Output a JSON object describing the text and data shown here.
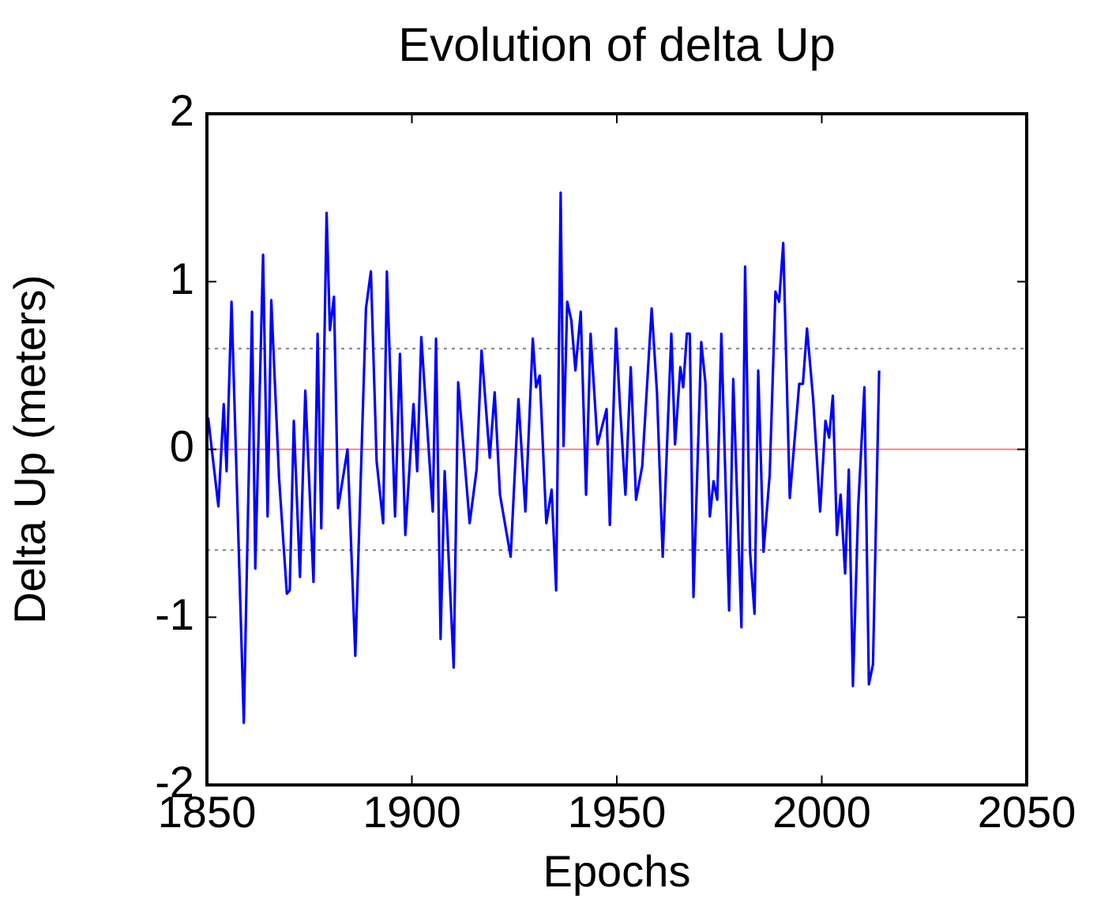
{
  "chart_data": {
    "type": "line",
    "title": "Evolution of delta Up",
    "xlabel": "Epochs",
    "ylabel": "Delta Up (meters)",
    "xlim": [
      1850,
      2050
    ],
    "xticks": [
      1850,
      1900,
      1950,
      2000,
      2050
    ],
    "ylim": [
      -2,
      2
    ],
    "yticks": [
      -2,
      -1,
      0,
      1,
      2
    ],
    "marker": "none",
    "line_style": "solid",
    "legend": false,
    "ref_lines": [
      {
        "axis": "y",
        "value": 0.6,
        "color": "#808080",
        "line_style": "dotted"
      },
      {
        "axis": "y",
        "value": 0,
        "color": "#ff8080",
        "line_style": "solid"
      },
      {
        "axis": "y",
        "value": -0.6,
        "color": "#808080",
        "line_style": "dotted"
      }
    ],
    "series": [
      {
        "color": "#0000ff",
        "x": [
          1850.3,
          1852.8,
          1854.1,
          1854.8,
          1856,
          1859,
          1861,
          1861.8,
          1863.7,
          1864.8,
          1865.7,
          1867.6,
          1869.5,
          1870.2,
          1871.2,
          1872.7,
          1874,
          1876,
          1877,
          1877.9,
          1879.2,
          1880,
          1881,
          1882,
          1884.3,
          1886.2,
          1888.8,
          1890,
          1891.4,
          1893,
          1893.9,
          1895.9,
          1897.1,
          1898.4,
          1900.4,
          1901.3,
          1902.3,
          1905.1,
          1905.9,
          1907,
          1908,
          1910.2,
          1911.3,
          1914.1,
          1915.8,
          1917,
          1919,
          1920.2,
          1921.5,
          1924.1,
          1926,
          1927.7,
          1929.5,
          1930.3,
          1931.2,
          1932.8,
          1934.1,
          1935.2,
          1936.3,
          1937,
          1937.9,
          1938.9,
          1939.9,
          1941.2,
          1942.5,
          1943.6,
          1945.3,
          1947.5,
          1948.3,
          1949.8,
          1950.7,
          1952.1,
          1953.4,
          1954.7,
          1956.2,
          1958.5,
          1959.8,
          1961.2,
          1963.3,
          1964.2,
          1965.5,
          1966.2,
          1967.1,
          1967.8,
          1968.7,
          1970.6,
          1971.6,
          1972.7,
          1973.6,
          1974.5,
          1975.5,
          1977.4,
          1978.4,
          1980.4,
          1981.3,
          1982.5,
          1983.6,
          1984.5,
          1985.8,
          1987.3,
          1988.7,
          1989.6,
          1990.6,
          1992.2,
          1994.5,
          1995.4,
          1996.4,
          1997.9,
          1999.6,
          2000.9,
          2001.8,
          2002.7,
          2003.7,
          2004.6,
          2005.7,
          2006.6,
          2007.6,
          2008.9,
          2010.4,
          2011.5,
          2012.5,
          2014
        ],
        "values": [
          0.19,
          -0.34,
          0.27,
          -0.13,
          0.88,
          -1.63,
          0.82,
          -0.71,
          1.16,
          -0.4,
          0.89,
          -0.17,
          -0.86,
          -0.84,
          0.17,
          -0.76,
          0.35,
          -0.79,
          0.69,
          -0.47,
          1.41,
          0.71,
          0.91,
          -0.35,
          0,
          -1.23,
          0.84,
          1.06,
          -0.07,
          -0.44,
          1.06,
          -0.4,
          0.57,
          -0.51,
          0.27,
          -0.13,
          0.67,
          -0.37,
          0.66,
          -1.13,
          -0.13,
          -1.3,
          0.4,
          -0.44,
          -0.12,
          0.59,
          -0.05,
          0.34,
          -0.27,
          -0.64,
          0.3,
          -0.37,
          0.66,
          0.37,
          0.44,
          -0.44,
          -0.24,
          -0.84,
          1.53,
          0.02,
          0.88,
          0.77,
          0.47,
          0.82,
          -0.27,
          0.69,
          0.03,
          0.24,
          -0.45,
          0.72,
          0.29,
          -0.27,
          0.49,
          -0.3,
          -0.1,
          0.84,
          0.34,
          -0.64,
          0.69,
          0.03,
          0.49,
          0.37,
          0.69,
          0.69,
          -0.88,
          0.64,
          0.4,
          -0.4,
          -0.19,
          -0.3,
          0.69,
          -0.96,
          0.42,
          -1.06,
          1.09,
          -0.61,
          -0.98,
          0.47,
          -0.61,
          -0.15,
          0.94,
          0.88,
          1.23,
          -0.29,
          0.39,
          0.39,
          0.72,
          0.3,
          -0.37,
          0.17,
          0.07,
          0.32,
          -0.51,
          -0.27,
          -0.74,
          -0.12,
          -1.41,
          -0.34,
          0.37,
          -1.4,
          -1.28,
          0.47
        ]
      }
    ]
  }
}
